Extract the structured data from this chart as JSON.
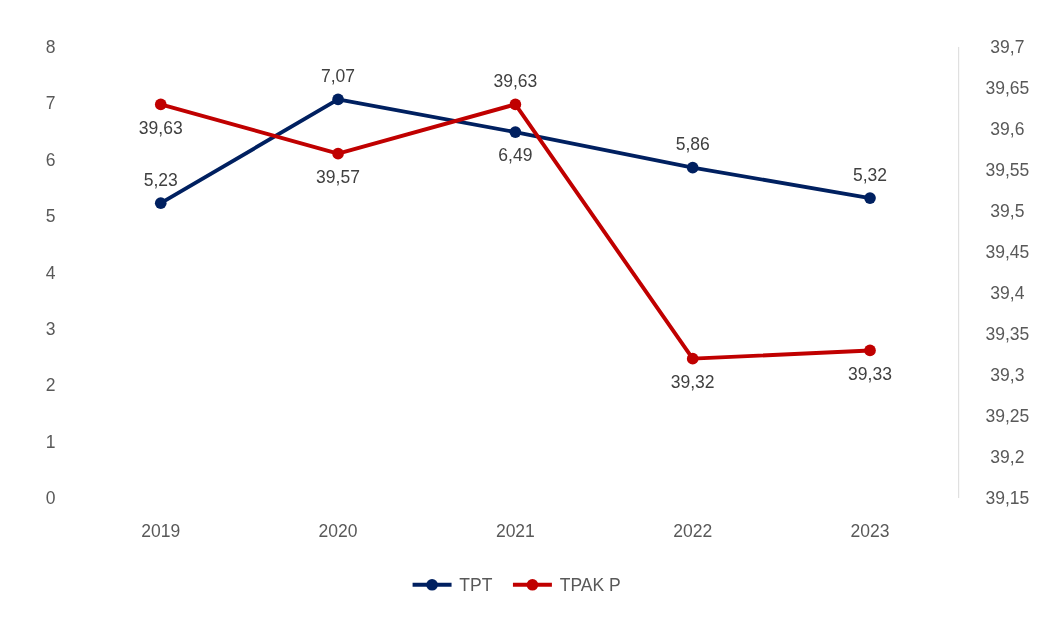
{
  "chart_data": {
    "type": "line",
    "categories": [
      "2019",
      "2020",
      "2021",
      "2022",
      "2023"
    ],
    "series": [
      {
        "name": "TPT",
        "color": "#002060",
        "values": [
          5.23,
          7.07,
          6.49,
          5.86,
          5.32
        ],
        "value_labels": [
          "5,23",
          "7,07",
          "6,49",
          "5,86",
          "5,32"
        ]
      },
      {
        "name": "TPAK P",
        "color": "#c00000",
        "axis": "y2",
        "values": [
          39.63,
          39.57,
          39.63,
          39.32,
          39.33
        ],
        "value_labels": [
          "39,63",
          "39,57",
          "39,63",
          "39,32",
          "39,33"
        ]
      }
    ],
    "ylim": [
      0,
      8
    ],
    "yticks": [
      0,
      1,
      2,
      3,
      4,
      5,
      6,
      7,
      8
    ],
    "y2lim": [
      39.15,
      39.7
    ],
    "y2ticks": [
      {
        "value": 39.15,
        "label": "39,15"
      },
      {
        "value": 39.2,
        "label": "39,2"
      },
      {
        "value": 39.25,
        "label": "39,25"
      },
      {
        "value": 39.3,
        "label": "39,3"
      },
      {
        "value": 39.35,
        "label": "39,35"
      },
      {
        "value": 39.4,
        "label": "39,4"
      },
      {
        "value": 39.45,
        "label": "39,45"
      },
      {
        "value": 39.5,
        "label": "39,5"
      },
      {
        "value": 39.55,
        "label": "39,55"
      },
      {
        "value": 39.6,
        "label": "39,6"
      },
      {
        "value": 39.65,
        "label": "39,65"
      },
      {
        "value": 39.7,
        "label": "39,7"
      }
    ],
    "marker": "circle",
    "legend": "bottom",
    "grid": false
  }
}
